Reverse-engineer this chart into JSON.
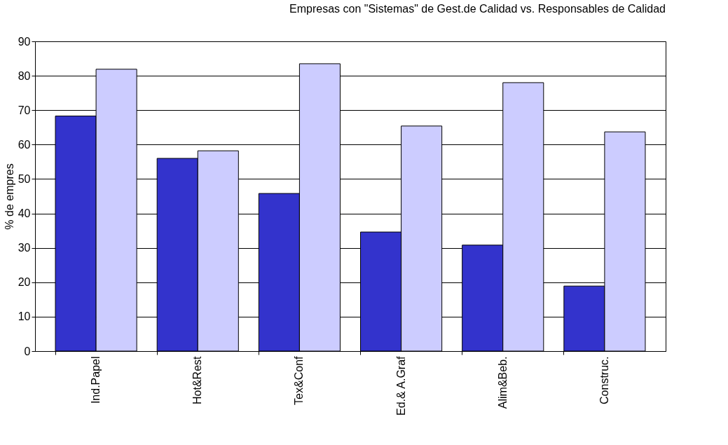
{
  "chart_data": {
    "type": "bar",
    "title": "Empresas con \"Sistemas\" de Gest.de Calidad vs. Responsables de Calidad",
    "ylabel": "% de empres",
    "categories": [
      "Ind.Papel",
      "Hot&Rest",
      "Tex&Conf",
      "Ed.& A.Graf",
      "Alim&Beb.",
      "Construc."
    ],
    "series": [
      {
        "color": "#3333cc",
        "values": [
          68.3,
          56.0,
          45.8,
          34.6,
          30.8,
          18.9
        ]
      },
      {
        "color": "#ccccff",
        "values": [
          81.9,
          58.2,
          83.5,
          65.4,
          78.0,
          63.7
        ]
      }
    ],
    "ylim": [
      0,
      90
    ],
    "yticks": [
      0,
      10,
      20,
      30,
      40,
      50,
      60,
      70,
      80,
      90
    ],
    "grid": "y",
    "legend": false
  }
}
